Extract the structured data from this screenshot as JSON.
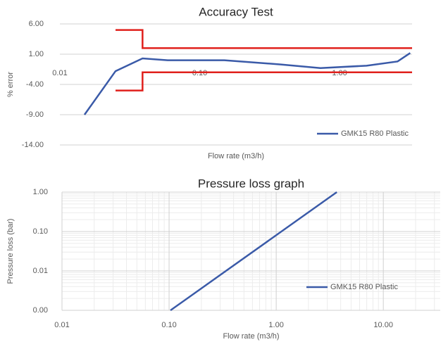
{
  "chart_data": [
    {
      "type": "line",
      "title": "Accuracy Test",
      "x_label": "Flow rate (m3/h)",
      "y_label": "% error",
      "xscale": "log",
      "xlim": [
        0.01,
        3.3
      ],
      "ylim": [
        -14,
        6
      ],
      "xticks": [
        0.01,
        {
          "value": 0.1,
          "label": "0.10"
        },
        {
          "value": 1,
          "label": "1.00"
        }
      ],
      "yticks": [
        {
          "value": 6,
          "label": "6.00"
        },
        {
          "value": 1,
          "label": "1.00"
        },
        {
          "value": -4,
          "label": "-4.00"
        },
        {
          "value": -9,
          "label": "-9.00"
        },
        {
          "value": -14,
          "label": "-14.00"
        }
      ],
      "grid": true,
      "legend": "bottom-right",
      "series": [
        {
          "name": "GMK15 R80 Plastic",
          "color": "#3a5aa8",
          "x": [
            0.015,
            0.025,
            0.039,
            0.059,
            0.15,
            0.38,
            0.73,
            1.56,
            2.6,
            3.2
          ],
          "values": [
            -9,
            -1.8,
            0.3,
            0,
            0,
            -0.7,
            -1.3,
            -0.9,
            -0.2,
            1.2
          ]
        }
      ],
      "limit_lines": [
        {
          "color": "#e0201c",
          "x": [
            0.025,
            0.039,
            0.039,
            3.3
          ],
          "values": [
            5,
            5,
            2,
            2
          ]
        },
        {
          "color": "#e0201c",
          "x": [
            0.025,
            0.039,
            0.039,
            3.3
          ],
          "values": [
            -5,
            -5,
            -2,
            -2
          ]
        }
      ]
    },
    {
      "type": "line",
      "title": "Pressure loss graph",
      "x_label": "Flow rate (m3/h)",
      "y_label": "Pressure loss (bar)",
      "xscale": "log",
      "yscale": "log",
      "xlim": [
        0.01,
        34
      ],
      "ylim": [
        0.001,
        1
      ],
      "xticks": [
        0.01,
        {
          "value": 0.1,
          "label": "0.10"
        },
        {
          "value": 1,
          "label": "1.00"
        },
        {
          "value": 10,
          "label": "10.00"
        }
      ],
      "yticks": [
        {
          "value": 0.001,
          "label": "0.00"
        },
        0.01,
        {
          "value": 0.1,
          "label": "0.10"
        },
        {
          "value": 1,
          "label": "1.00"
        }
      ],
      "grid": true,
      "minor_grid": true,
      "legend": "bottom-right",
      "series": [
        {
          "name": "GMK15  R80 Plastic",
          "color": "#3a5aa8",
          "x": [
            0.103,
            3.68
          ],
          "values": [
            0.001,
            1
          ]
        }
      ]
    }
  ]
}
